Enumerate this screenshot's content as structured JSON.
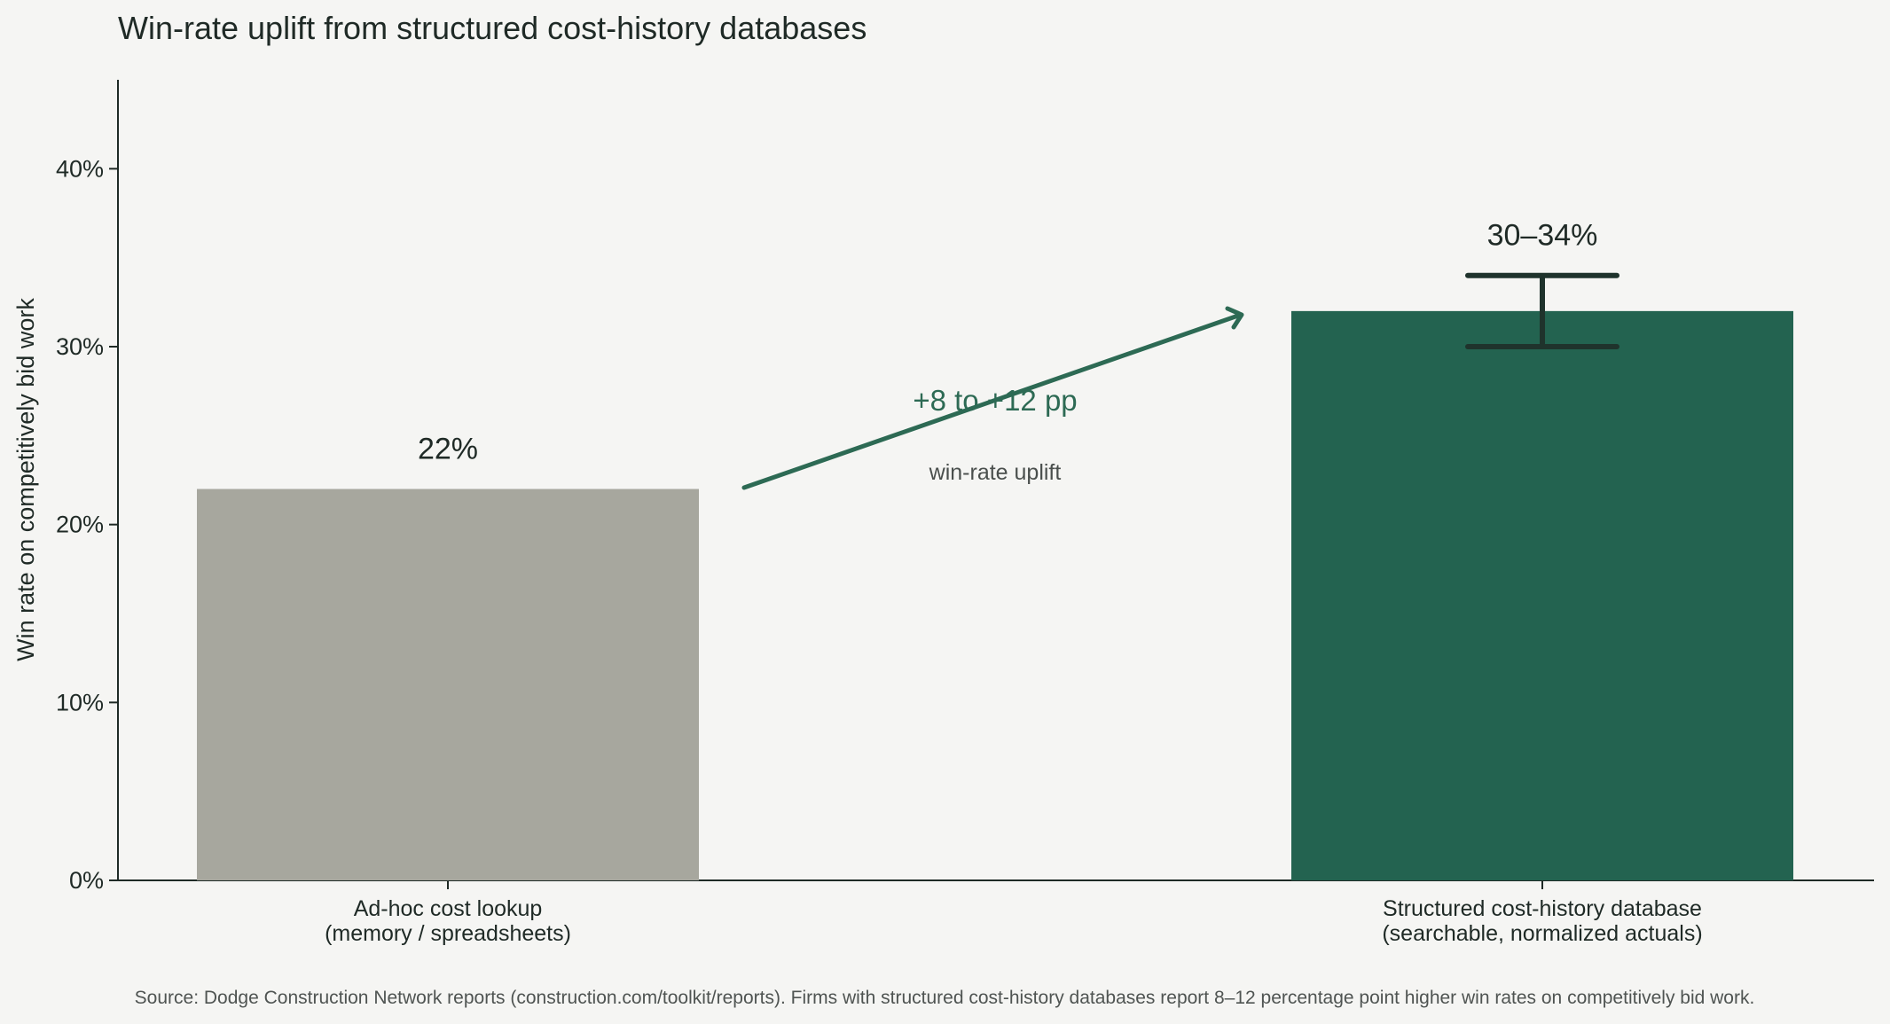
{
  "chart_data": {
    "type": "bar",
    "title": "Win-rate uplift from structured cost-history databases",
    "ylabel": "Win rate on competitively bid work",
    "xlabel": "",
    "ylim": [
      0,
      45
    ],
    "yticks": [
      0,
      10,
      20,
      30,
      40
    ],
    "ytick_labels": [
      "0%",
      "10%",
      "20%",
      "30%",
      "40%"
    ],
    "grid": false,
    "categories": [
      {
        "line1": "Ad-hoc cost lookup",
        "line2": "(memory / spreadsheets)"
      },
      {
        "line1": "Structured cost-history database",
        "line2": "(searchable, normalized actuals)"
      }
    ],
    "values": [
      22,
      32
    ],
    "error_range": [
      null,
      [
        30,
        34
      ]
    ],
    "data_labels": [
      "22%",
      "30–34%"
    ],
    "colors": [
      "#a7a79e",
      "#236350"
    ],
    "annotation": {
      "main": "+8 to +12 pp",
      "sub": "win-rate uplift",
      "color": "#2d6a54"
    },
    "source": "Source: Dodge Construction Network reports (construction.com/toolkit/reports). Firms with structured cost-history databases report 8–12 percentage point higher win rates on competitively bid work."
  }
}
